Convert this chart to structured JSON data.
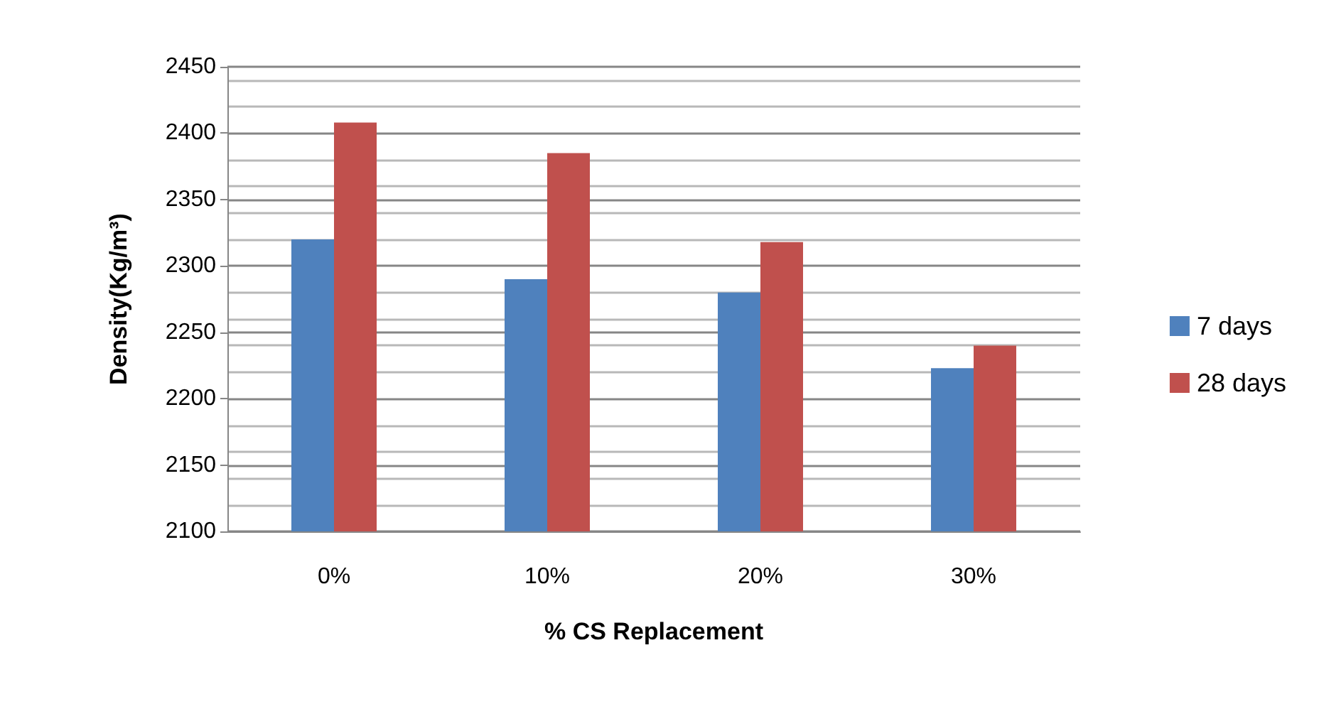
{
  "chart_data": {
    "type": "bar",
    "xlabel": "% CS Replacement",
    "ylabel": "Density(Kg/m³)",
    "categories": [
      "0%",
      "10%",
      "20%",
      "30%"
    ],
    "series": [
      {
        "name": "7 days",
        "color": "#4f81bd",
        "values": [
          2320,
          2290,
          2280,
          2223
        ]
      },
      {
        "name": "28 days",
        "color": "#c0504d",
        "values": [
          2408,
          2385,
          2318,
          2240
        ]
      }
    ],
    "ylim": [
      2100,
      2450
    ],
    "yticks": [
      2100,
      2150,
      2200,
      2250,
      2300,
      2350,
      2400,
      2450
    ],
    "grid": "y",
    "legend": "right"
  }
}
